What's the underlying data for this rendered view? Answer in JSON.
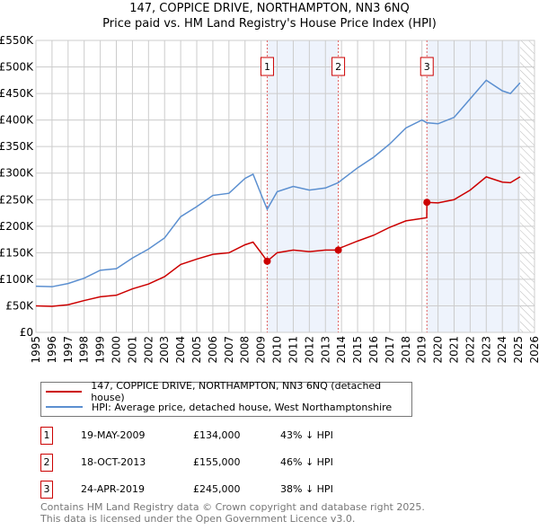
{
  "chart_data": {
    "type": "line",
    "title": "147, COPPICE DRIVE, NORTHAMPTON, NN3 6NQ",
    "subtitle": "Price paid vs. HM Land Registry's House Price Index (HPI)",
    "xlim": [
      1995,
      2026
    ],
    "ylim": [
      0,
      550000
    ],
    "x_ticks": [
      "1995",
      "1996",
      "1997",
      "1998",
      "1999",
      "2000",
      "2001",
      "2002",
      "2003",
      "2004",
      "2005",
      "2006",
      "2007",
      "2008",
      "2009",
      "2010",
      "2011",
      "2012",
      "2013",
      "2014",
      "2015",
      "2016",
      "2017",
      "2018",
      "2019",
      "2020",
      "2021",
      "2022",
      "2023",
      "2024",
      "2025",
      "2026"
    ],
    "y_ticks": [
      {
        "v": 0,
        "l": "£0"
      },
      {
        "v": 50000,
        "l": "£50K"
      },
      {
        "v": 100000,
        "l": "£100K"
      },
      {
        "v": 150000,
        "l": "£150K"
      },
      {
        "v": 200000,
        "l": "£200K"
      },
      {
        "v": 250000,
        "l": "£250K"
      },
      {
        "v": 300000,
        "l": "£300K"
      },
      {
        "v": 350000,
        "l": "£350K"
      },
      {
        "v": 400000,
        "l": "£400K"
      },
      {
        "v": 450000,
        "l": "£450K"
      },
      {
        "v": 500000,
        "l": "£500K"
      },
      {
        "v": 550000,
        "l": "£550K"
      }
    ],
    "grid": true,
    "series": [
      {
        "name": "147, COPPICE DRIVE, NORTHAMPTON, NN3 6NQ (detached house)",
        "color": "#cc0000",
        "points": [
          [
            1995,
            50000
          ],
          [
            1996,
            49000
          ],
          [
            1997,
            52000
          ],
          [
            1998,
            60000
          ],
          [
            1999,
            67000
          ],
          [
            2000,
            70000
          ],
          [
            2001,
            82000
          ],
          [
            2002,
            91000
          ],
          [
            2003,
            105000
          ],
          [
            2004,
            128000
          ],
          [
            2005,
            138000
          ],
          [
            2006,
            147000
          ],
          [
            2007,
            150000
          ],
          [
            2008,
            165000
          ],
          [
            2008.5,
            170000
          ],
          [
            2009,
            150000
          ],
          [
            2009.38,
            134000
          ],
          [
            2010,
            150000
          ],
          [
            2011,
            155000
          ],
          [
            2012,
            152000
          ],
          [
            2013,
            155000
          ],
          [
            2013.8,
            155000
          ],
          [
            2014,
            160000
          ],
          [
            2015,
            172000
          ],
          [
            2016,
            183000
          ],
          [
            2017,
            198000
          ],
          [
            2018,
            210000
          ],
          [
            2019.3,
            216000
          ],
          [
            2019.31,
            245000
          ],
          [
            2020,
            244000
          ],
          [
            2021,
            250000
          ],
          [
            2022,
            268000
          ],
          [
            2023,
            293000
          ],
          [
            2024,
            283000
          ],
          [
            2024.5,
            282000
          ],
          [
            2025.1,
            293000
          ]
        ]
      },
      {
        "name": "HPI: Average price, detached house, West Northamptonshire",
        "color": "#5b8fd0",
        "points": [
          [
            1995,
            87000
          ],
          [
            1996,
            86000
          ],
          [
            1997,
            92000
          ],
          [
            1998,
            102000
          ],
          [
            1999,
            117000
          ],
          [
            2000,
            120000
          ],
          [
            2001,
            140000
          ],
          [
            2002,
            157000
          ],
          [
            2003,
            178000
          ],
          [
            2004,
            218000
          ],
          [
            2005,
            237000
          ],
          [
            2006,
            258000
          ],
          [
            2007,
            262000
          ],
          [
            2008,
            290000
          ],
          [
            2008.5,
            298000
          ],
          [
            2009,
            260000
          ],
          [
            2009.38,
            232000
          ],
          [
            2010,
            265000
          ],
          [
            2011,
            275000
          ],
          [
            2012,
            268000
          ],
          [
            2013,
            272000
          ],
          [
            2013.8,
            282000
          ],
          [
            2014,
            287000
          ],
          [
            2015,
            310000
          ],
          [
            2016,
            330000
          ],
          [
            2017,
            355000
          ],
          [
            2018,
            385000
          ],
          [
            2019,
            400000
          ],
          [
            2019.3,
            395000
          ],
          [
            2020,
            393000
          ],
          [
            2021,
            405000
          ],
          [
            2022,
            440000
          ],
          [
            2023,
            475000
          ],
          [
            2024,
            455000
          ],
          [
            2024.5,
            450000
          ],
          [
            2025.1,
            470000
          ]
        ]
      }
    ],
    "sales": [
      {
        "label": "1",
        "x": 2009.38,
        "y": 134000,
        "date": "19-MAY-2009",
        "price": "£134,000",
        "hpi": "43% ↓ HPI"
      },
      {
        "label": "2",
        "x": 2013.8,
        "y": 155000,
        "date": "18-OCT-2013",
        "price": "£155,000",
        "hpi": "46% ↓ HPI"
      },
      {
        "label": "3",
        "x": 2019.31,
        "y": 245000,
        "date": "24-APR-2019",
        "price": "£245,000",
        "hpi": "38% ↓ HPI"
      }
    ],
    "shaded_ranges": [
      [
        2009.38,
        2013.8
      ],
      [
        2019.31,
        2025.1
      ]
    ],
    "forecast_from": 2025.1
  },
  "footer": {
    "line1": "Contains HM Land Registry data © Crown copyright and database right 2025.",
    "line2": "This data is licensed under the Open Government Licence v3.0."
  }
}
